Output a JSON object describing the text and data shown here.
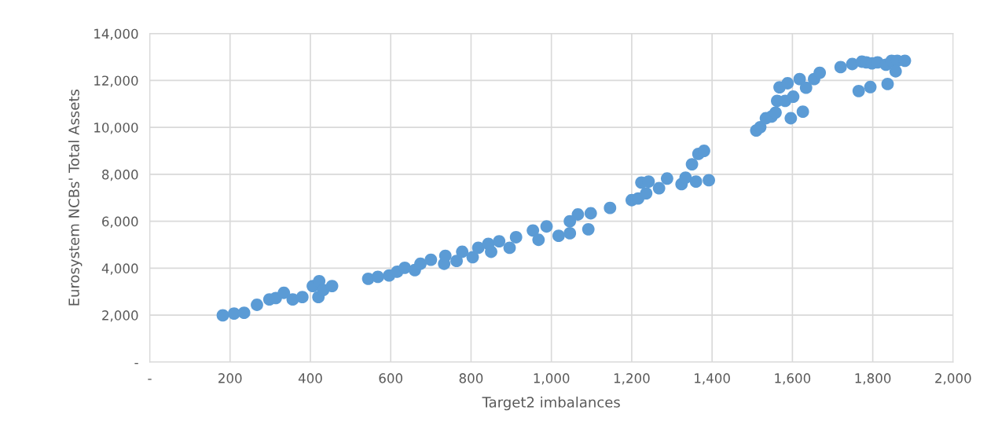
{
  "chart_data": {
    "type": "scatter",
    "xlabel": "Target2 imbalances",
    "ylabel": "Eurosystem NCBs' Total Assets",
    "xlim": [
      0,
      2000
    ],
    "ylim": [
      0,
      14000
    ],
    "xticks": [
      {
        "value": 0,
        "label": "-"
      },
      200,
      400,
      600,
      800,
      {
        "value": 1000,
        "label": "1,000"
      },
      {
        "value": 1200,
        "label": "1,200"
      },
      {
        "value": 1400,
        "label": "1,400"
      },
      {
        "value": 1600,
        "label": "1,600"
      },
      {
        "value": 1800,
        "label": "1,800"
      },
      {
        "value": 2000,
        "label": "2,000"
      }
    ],
    "yticks": [
      {
        "value": 0,
        "label": "-"
      },
      {
        "value": 2000,
        "label": "2,000"
      },
      {
        "value": 4000,
        "label": "4,000"
      },
      {
        "value": 6000,
        "label": "6,000"
      },
      {
        "value": 8000,
        "label": "8,000"
      },
      {
        "value": 10000,
        "label": "10,000"
      },
      {
        "value": 12000,
        "label": "12,000"
      },
      {
        "value": 14000,
        "label": "14,000"
      }
    ],
    "grid": true,
    "marker": "circle",
    "series": [
      {
        "color": "#5b9bd5",
        "x": [
          182,
          210,
          235,
          267,
          298,
          314,
          334,
          356,
          380,
          406,
          422,
          420,
          432,
          454,
          544,
          568,
          596,
          616,
          635,
          660,
          674,
          700,
          733,
          736,
          764,
          778,
          804,
          818,
          850,
          843,
          870,
          896,
          912,
          954,
          968,
          988,
          1018,
          1046,
          1066,
          1092,
          1098,
          1046,
          1146,
          1200,
          1216,
          1236,
          1224,
          1242,
          1268,
          1288,
          1324,
          1334,
          1360,
          1392,
          1350,
          1366,
          1380,
          1510,
          1520,
          1534,
          1548,
          1558,
          1562,
          1568,
          1588,
          1582,
          1596,
          1602,
          1618,
          1626,
          1634,
          1654,
          1668,
          1720,
          1749,
          1773,
          1784,
          1798,
          1812,
          1833,
          1847,
          1861,
          1880,
          1765,
          1794,
          1837,
          1857
        ],
        "values": [
          1990,
          2070,
          2100,
          2440,
          2670,
          2730,
          2950,
          2670,
          2770,
          3240,
          3450,
          2770,
          3070,
          3240,
          3550,
          3630,
          3690,
          3850,
          4020,
          3920,
          4190,
          4360,
          4190,
          4530,
          4310,
          4700,
          4470,
          4870,
          4700,
          5040,
          5150,
          4870,
          5320,
          5610,
          5210,
          5780,
          5380,
          5490,
          6290,
          5660,
          6340,
          6000,
          6570,
          6900,
          6970,
          7190,
          7650,
          7690,
          7410,
          7820,
          7580,
          7860,
          7690,
          7750,
          8430,
          8870,
          9000,
          9870,
          10010,
          10390,
          10460,
          10630,
          11130,
          11710,
          11880,
          11130,
          10390,
          11310,
          12060,
          10670,
          11690,
          12060,
          12330,
          12570,
          12700,
          12800,
          12770,
          12730,
          12770,
          12670,
          12840,
          12840,
          12840,
          11550,
          11720,
          11850,
          12390
        ]
      }
    ]
  }
}
